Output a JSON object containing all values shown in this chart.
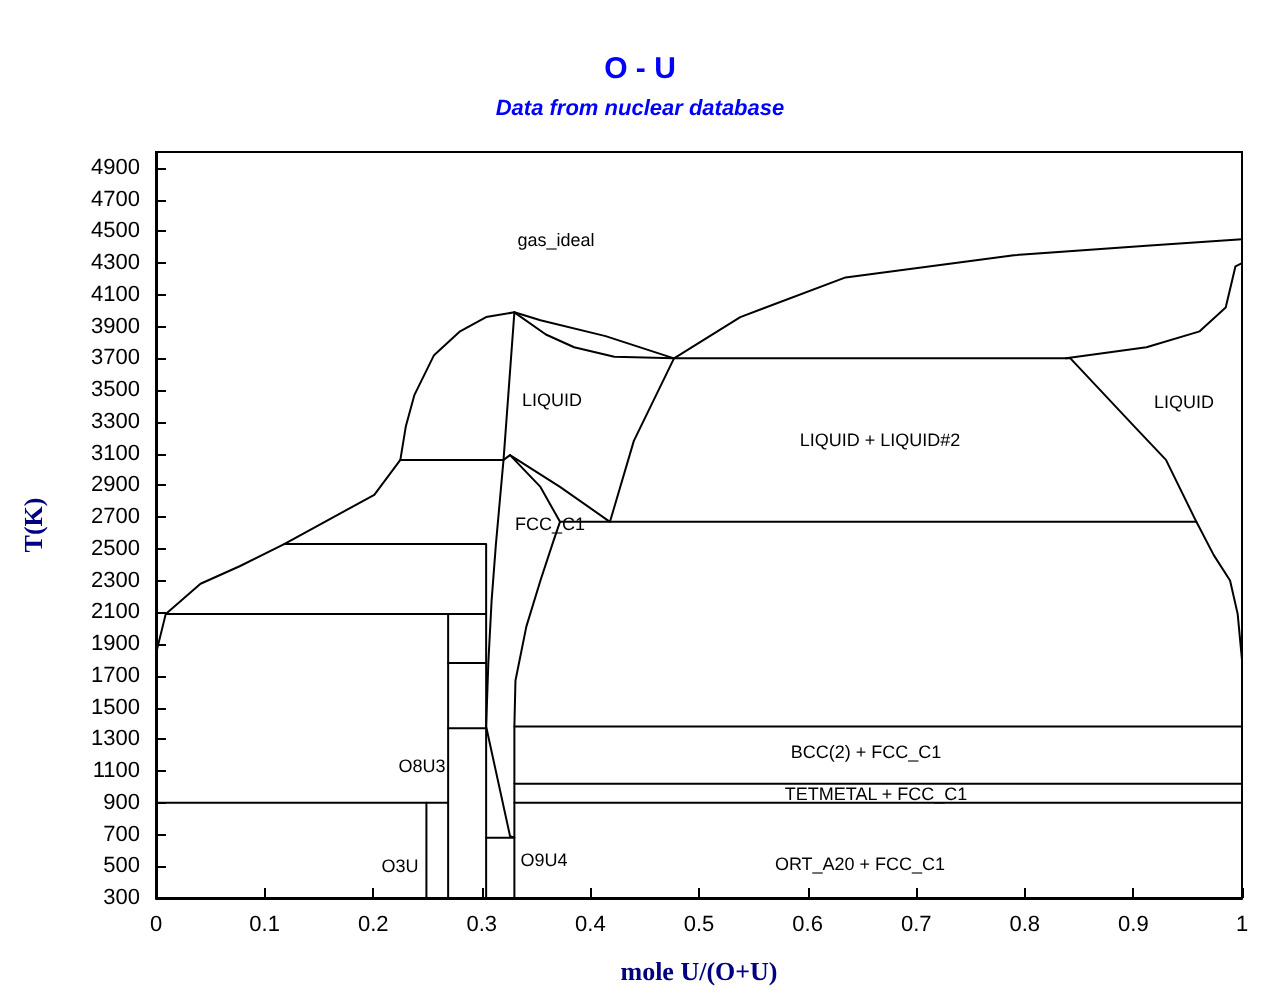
{
  "chart_data": {
    "type": "line",
    "title": "O - U",
    "subtitle": "Data from nuclear database",
    "xlabel": "mole U/(O+U)",
    "ylabel": "T(K)",
    "xlim": [
      0,
      1
    ],
    "xticks": [
      0,
      0.1,
      0.2,
      0.3,
      0.4,
      0.5,
      0.6,
      0.7,
      0.8,
      0.9,
      1
    ],
    "ylim": [
      300,
      5000
    ],
    "yticks": [
      300,
      500,
      700,
      900,
      1100,
      1300,
      1500,
      1700,
      1900,
      2100,
      2300,
      2500,
      2700,
      2900,
      3100,
      3300,
      3500,
      3700,
      3900,
      4100,
      4300,
      4500,
      4700,
      4900
    ],
    "grid": false,
    "marker": "none",
    "line_style": "solid",
    "series": [
      {
        "color": "#000000",
        "x": [
          0,
          0.009,
          0.041,
          0.077,
          0.118,
          0.201,
          0.225,
          0.23,
          0.238,
          0.256,
          0.28,
          0.304,
          0.33,
          0.354,
          0.414,
          0.477,
          0.538,
          0.635,
          0.79,
          0.912,
          1
        ],
        "values": [
          1840,
          2090,
          2280,
          2390,
          2530,
          2840,
          3060,
          3270,
          3470,
          3720,
          3870,
          3960,
          3990,
          3940,
          3840,
          3700,
          3960,
          4210,
          4350,
          4410,
          4450
        ]
      },
      {
        "color": "#000000",
        "x": [
          0.33,
          0.359,
          0.385,
          0.422,
          0.477,
          0.44,
          0.418,
          0.958,
          0.93,
          0.901,
          0.842,
          0.477
        ],
        "values": [
          3990,
          3850,
          3770,
          3710,
          3700,
          3180,
          2670,
          2670,
          3060,
          3270,
          3700,
          3700
        ]
      },
      {
        "color": "#000000",
        "x": [
          0.958,
          0.974,
          0.989,
          0.996,
          1
        ],
        "values": [
          2670,
          2460,
          2300,
          2090,
          1800
        ]
      },
      {
        "color": "#000000",
        "x": [
          0.33,
          0.33,
          0.331,
          0.341,
          0.354,
          0.366,
          0.372,
          0.354,
          0.326,
          0.372,
          0.418,
          0.372
        ],
        "values": [
          300,
          1380,
          1670,
          2010,
          2300,
          2550,
          2670,
          2890,
          3090,
          2890,
          2670,
          2670
        ]
      },
      {
        "color": "#000000",
        "x": [
          0.33,
          0.32,
          0.225
        ],
        "values": [
          3990,
          3060,
          3060
        ]
      },
      {
        "color": "#000000",
        "x": [
          0.326,
          0.32,
          0.313,
          0.309,
          0.306,
          0.304,
          0.326,
          0.33,
          0.304
        ],
        "values": [
          3090,
          3060,
          2530,
          2170,
          1780,
          1380,
          690,
          680,
          680
        ]
      },
      {
        "color": "#000000",
        "x": [
          0.118,
          0.304,
          0.304
        ],
        "values": [
          2530,
          2530,
          300
        ]
      },
      {
        "color": "#000000",
        "x": [
          0.009,
          0.304
        ],
        "values": [
          2090,
          2090
        ]
      },
      {
        "color": "#000000",
        "x": [
          0.269,
          0.269
        ],
        "values": [
          2090,
          300
        ]
      },
      {
        "color": "#000000",
        "x": [
          0.269,
          0.304
        ],
        "values": [
          1780,
          1780
        ]
      },
      {
        "color": "#000000",
        "x": [
          0.269,
          0.304
        ],
        "values": [
          1370,
          1370
        ]
      },
      {
        "color": "#000000",
        "x": [
          0,
          0.269
        ],
        "values": [
          900,
          900
        ]
      },
      {
        "color": "#000000",
        "x": [
          0.249,
          0.249
        ],
        "values": [
          900,
          300
        ]
      },
      {
        "color": "#000000",
        "x": [
          0.33,
          1
        ],
        "values": [
          1380,
          1380
        ]
      },
      {
        "color": "#000000",
        "x": [
          0.33,
          1
        ],
        "values": [
          1020,
          1020
        ]
      },
      {
        "color": "#000000",
        "x": [
          0.33,
          1
        ],
        "values": [
          900,
          900
        ]
      },
      {
        "color": "#000000",
        "x": [
          0.838,
          0.912,
          0.961,
          0.985,
          0.994,
          1
        ],
        "values": [
          3700,
          3770,
          3870,
          4020,
          4280,
          4300
        ]
      }
    ],
    "annotations": [
      "gas_ideal",
      "LIQUID",
      "LIQUID + LIQUID#2",
      "LIQUID",
      "FCC_C1",
      "O8U3",
      "O3U",
      "O9U4",
      "BCC(2) + FCC_C1",
      "TETMETAL + FCC_C1",
      "ORT_A20 + FCC_C1"
    ]
  }
}
